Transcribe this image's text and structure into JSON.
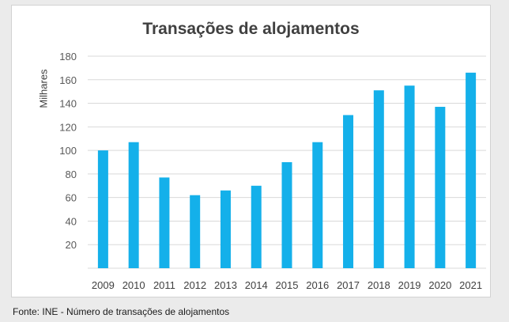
{
  "source_note": "Fonte: INE - Número de transações de alojamentos",
  "chart_data": {
    "type": "bar",
    "title": "Transações de alojamentos",
    "xlabel": "",
    "ylabel": "Milhares",
    "categories": [
      "2009",
      "2010",
      "2011",
      "2012",
      "2013",
      "2014",
      "2015",
      "2016",
      "2017",
      "2018",
      "2019",
      "2020",
      "2021"
    ],
    "values": [
      100,
      107,
      77,
      62,
      66,
      70,
      90,
      107,
      130,
      151,
      155,
      137,
      166
    ],
    "ylim": [
      0,
      180
    ],
    "yticks": [
      20,
      40,
      60,
      80,
      100,
      120,
      140,
      160,
      180
    ],
    "grid": true,
    "bar_color": "#14b0ea"
  }
}
